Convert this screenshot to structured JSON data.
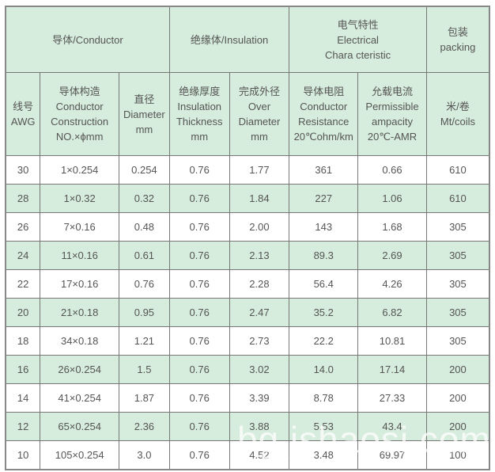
{
  "header_groups": {
    "conductor": "导体/Conductor",
    "insulation": "绝缘体/Insulation",
    "electrical": [
      "电气特性",
      "Electrical",
      "Chara cteristic"
    ],
    "packing": [
      "包装",
      "packing"
    ]
  },
  "columns": [
    [
      "线号",
      "AWG"
    ],
    [
      "导体构造",
      "Conductor",
      "Construction",
      "NO.×ϕmm"
    ],
    [
      "直径",
      "Diameter",
      "mm"
    ],
    [
      "绝缘厚度",
      "Insulation",
      "Thickness",
      "mm"
    ],
    [
      "完成外径",
      "Over",
      "Diameter",
      "mm"
    ],
    [
      "导体电阻",
      "Conductor",
      "Resistance",
      "20℃ohm/km"
    ],
    [
      "允载电流",
      "Permissible",
      "ampacity",
      "20℃-AMR"
    ],
    [
      "米/卷",
      "Mt/coils"
    ]
  ],
  "rows": [
    [
      "30",
      "1×0.254",
      "0.254",
      "0.76",
      "1.77",
      "361",
      "0.66",
      "610"
    ],
    [
      "28",
      "1×0.32",
      "0.32",
      "0.76",
      "1.84",
      "227",
      "1.06",
      "610"
    ],
    [
      "26",
      "7×0.16",
      "0.48",
      "0.76",
      "2.00",
      "143",
      "1.68",
      "305"
    ],
    [
      "24",
      "11×0.16",
      "0.61",
      "0.76",
      "2.13",
      "89.3",
      "2.69",
      "305"
    ],
    [
      "22",
      "17×0.16",
      "0.76",
      "0.76",
      "2.28",
      "56.4",
      "4.26",
      "305"
    ],
    [
      "20",
      "21×0.18",
      "0.95",
      "0.76",
      "2.47",
      "35.2",
      "6.82",
      "305"
    ],
    [
      "18",
      "34×0.18",
      "1.21",
      "0.76",
      "2.73",
      "22.2",
      "10.81",
      "305"
    ],
    [
      "16",
      "26×0.254",
      "1.5",
      "0.76",
      "3.02",
      "14.0",
      "17.14",
      "200"
    ],
    [
      "14",
      "41×0.254",
      "1.87",
      "0.76",
      "3.39",
      "8.78",
      "27.33",
      "200"
    ],
    [
      "12",
      "65×0.254",
      "2.36",
      "0.76",
      "3.88",
      "5.53",
      "43.4",
      "200"
    ],
    [
      "10",
      "105×0.254",
      "3.0",
      "0.76",
      "4.52",
      "3.48",
      "69.97",
      "100"
    ]
  ],
  "watermark": "bg.jshaosi.com",
  "colors": {
    "header_bg": "#d6ecdc",
    "stripe_bg": "#d6ecdc"
  }
}
